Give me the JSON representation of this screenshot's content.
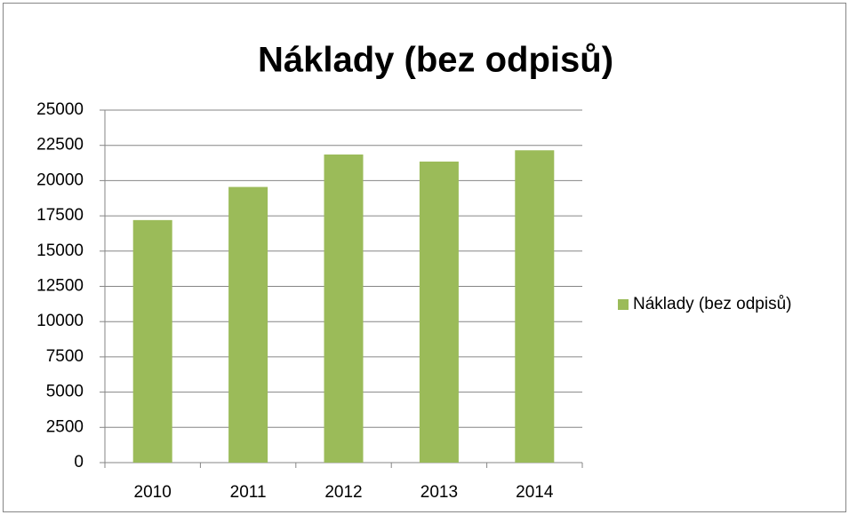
{
  "chart_data": {
    "type": "bar",
    "title": "Náklady (bez odpisů)",
    "categories": [
      "2010",
      "2011",
      "2012",
      "2013",
      "2014"
    ],
    "series": [
      {
        "name": "Náklady (bez odpisů)",
        "color": "#9bbb59",
        "values": [
          17200,
          19550,
          21850,
          21350,
          22150
        ]
      }
    ],
    "ylim": [
      0,
      25000
    ],
    "yticks": [
      0,
      2500,
      5000,
      7500,
      10000,
      12500,
      15000,
      17500,
      20000,
      22500,
      25000
    ],
    "grid": true,
    "legend": "right"
  }
}
